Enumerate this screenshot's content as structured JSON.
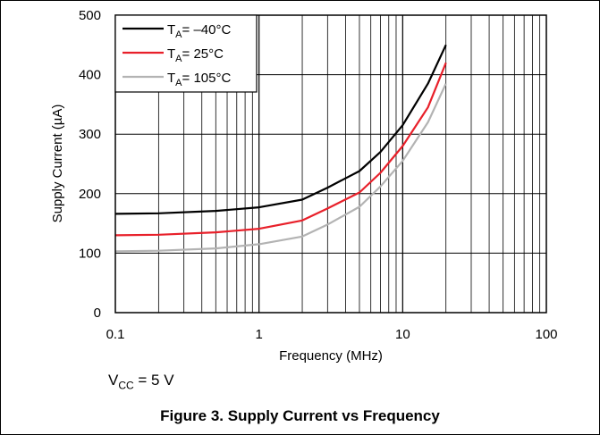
{
  "chart_data": {
    "type": "line",
    "title": "",
    "xlabel": "Frequency (MHz)",
    "ylabel": "Supply Current (µA)",
    "xscale": "log",
    "xlim": [
      0.1,
      100
    ],
    "ylim": [
      0,
      500
    ],
    "x_ticks": [
      "0.1",
      "1",
      "10",
      "100"
    ],
    "y_ticks": [
      "0",
      "100",
      "200",
      "300",
      "400",
      "500"
    ],
    "grid": true,
    "legend_position": "top-left",
    "series": [
      {
        "name": "= –40°C",
        "color": "#000000",
        "x": [
          0.1,
          0.2,
          0.5,
          1,
          2,
          3,
          5,
          7,
          10,
          15,
          20
        ],
        "y": [
          166,
          167,
          171,
          177,
          190,
          210,
          238,
          270,
          315,
          385,
          450
        ]
      },
      {
        "name": "= 25°C",
        "color": "#e8202a",
        "x": [
          0.1,
          0.2,
          0.5,
          1,
          2,
          3,
          5,
          7,
          10,
          15,
          20
        ],
        "y": [
          130,
          131,
          135,
          141,
          155,
          175,
          202,
          235,
          280,
          345,
          420
        ]
      },
      {
        "name": "= 105°C",
        "color": "#b3b3b3",
        "x": [
          0.1,
          0.2,
          0.5,
          1,
          2,
          3,
          5,
          7,
          10,
          15,
          20
        ],
        "y": [
          103,
          104,
          108,
          115,
          128,
          148,
          178,
          212,
          255,
          320,
          385
        ]
      }
    ],
    "legend_subscript": "A",
    "legend_symbol": "T"
  },
  "condition": {
    "symbol": "V",
    "subscript": "CC",
    "value": " = 5 V"
  },
  "caption": "Figure 3. Supply Current vs Frequency"
}
